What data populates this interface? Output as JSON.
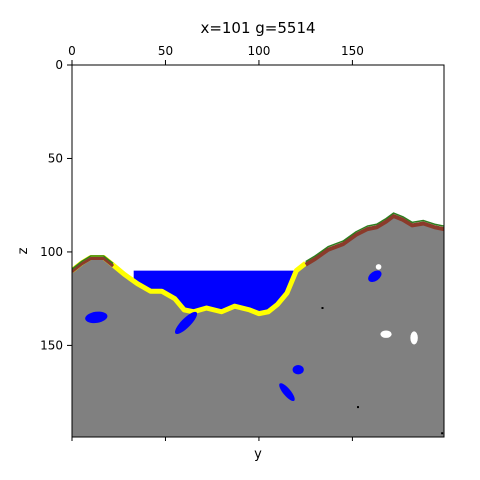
{
  "chart_data": {
    "type": "heatmap",
    "title": "x=101 g=5514",
    "xlabel": "y",
    "ylabel": "z",
    "xlim": [
      0,
      199
    ],
    "ylim": [
      199,
      0
    ],
    "x_ticks": [
      {
        "value": 0,
        "label": "0"
      },
      {
        "value": 50,
        "label": "50"
      },
      {
        "value": 100,
        "label": "100"
      },
      {
        "value": 150,
        "label": "150"
      }
    ],
    "y_ticks": [
      {
        "value": 0,
        "label": "0"
      },
      {
        "value": 50,
        "label": "50"
      },
      {
        "value": 100,
        "label": "100"
      },
      {
        "value": 150,
        "label": "150"
      }
    ],
    "colors": {
      "empty": "#ffffff",
      "stone": "#808080",
      "water": "#0000ff",
      "sand": "#ffff00",
      "dirt": "#8b3a2a",
      "grass": "#2e7d1e",
      "snow": "#ffffff",
      "dark": "#000000"
    },
    "surface_profile": [
      [
        0,
        110
      ],
      [
        5,
        106
      ],
      [
        10,
        103
      ],
      [
        17,
        103
      ],
      [
        22,
        107
      ],
      [
        28,
        112
      ],
      [
        35,
        117
      ],
      [
        42,
        121
      ],
      [
        48,
        121
      ],
      [
        55,
        125
      ],
      [
        60,
        131
      ],
      [
        65,
        132
      ],
      [
        72,
        130
      ],
      [
        80,
        132
      ],
      [
        87,
        129
      ],
      [
        95,
        131
      ],
      [
        100,
        133
      ],
      [
        105,
        132
      ],
      [
        110,
        128
      ],
      [
        115,
        122
      ],
      [
        120,
        110
      ],
      [
        125,
        106
      ],
      [
        130,
        103
      ],
      [
        137,
        98
      ],
      [
        145,
        95
      ],
      [
        152,
        90
      ],
      [
        158,
        87
      ],
      [
        163,
        86
      ],
      [
        168,
        83
      ],
      [
        172,
        80
      ],
      [
        177,
        82
      ],
      [
        182,
        85
      ],
      [
        188,
        84
      ],
      [
        194,
        86
      ],
      [
        199,
        87
      ]
    ],
    "lake": {
      "z_top": 110,
      "y_range": [
        33,
        120
      ]
    },
    "blobs": [
      {
        "y": 13,
        "z": 135,
        "ry": 6,
        "rz": 3,
        "angle": -8,
        "material": "water"
      },
      {
        "y": 61,
        "z": 138,
        "ry": 8,
        "rz": 2.5,
        "angle": -45,
        "material": "water"
      },
      {
        "y": 162,
        "z": 113,
        "ry": 4,
        "rz": 2.5,
        "angle": -35,
        "material": "water"
      },
      {
        "y": 115,
        "z": 175,
        "ry": 6,
        "rz": 2,
        "angle": 50,
        "material": "water"
      },
      {
        "y": 121,
        "z": 163,
        "ry": 3,
        "rz": 2.5,
        "angle": 0,
        "material": "water"
      },
      {
        "y": 168,
        "z": 144,
        "ry": 3,
        "rz": 2,
        "angle": 0,
        "material": "snow"
      },
      {
        "y": 183,
        "z": 146,
        "ry": 2,
        "rz": 3.5,
        "angle": 0,
        "material": "snow"
      },
      {
        "y": 164,
        "z": 108,
        "ry": 1.5,
        "rz": 1.5,
        "angle": 0,
        "material": "snow"
      }
    ],
    "specks": [
      {
        "y": 134,
        "z": 130,
        "material": "dark"
      },
      {
        "y": 153,
        "z": 183,
        "material": "dark"
      },
      {
        "y": 198,
        "z": 197,
        "material": "dark"
      }
    ]
  }
}
